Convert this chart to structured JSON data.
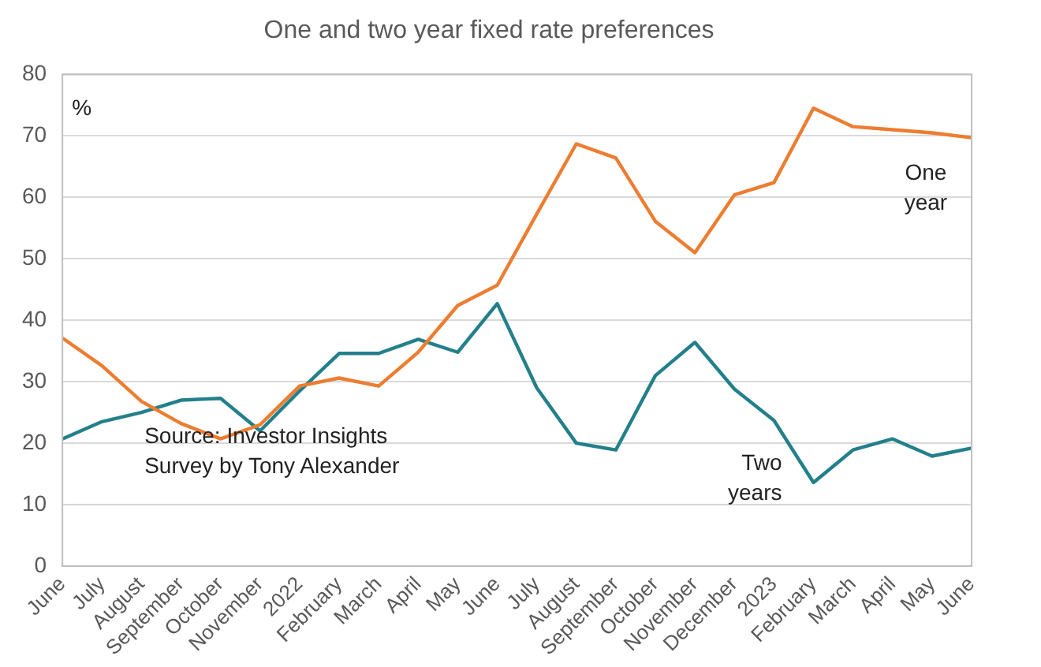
{
  "chart_data": {
    "type": "line",
    "title": "One and two year fixed rate preferences",
    "ylabel": "%",
    "categories": [
      "June",
      "July",
      "August",
      "September",
      "October",
      "November",
      "2022",
      "February",
      "March",
      "April",
      "May",
      "June",
      "July",
      "August",
      "September",
      "October",
      "November",
      "December",
      "2023",
      "February",
      "March",
      "April",
      "May",
      "June"
    ],
    "series": [
      {
        "name": "One year",
        "color": "#ed7d31",
        "values": [
          37.1,
          32.6,
          26.8,
          23.2,
          20.7,
          23,
          29.3,
          30.6,
          29.3,
          34.8,
          42.4,
          45.7,
          57.3,
          68.7,
          66.4,
          56.1,
          51,
          60.4,
          62.4,
          74.5,
          71.5,
          71,
          70.5,
          69.7
        ]
      },
      {
        "name": "Two years",
        "color": "#23808b",
        "values": [
          20.7,
          23.5,
          25,
          27,
          27.3,
          22,
          28.5,
          34.6,
          34.6,
          36.9,
          34.8,
          42.7,
          29,
          20,
          18.9,
          31,
          36.4,
          28.8,
          23.7,
          13.6,
          18.9,
          20.7,
          17.9,
          19.2
        ]
      }
    ],
    "ylim": [
      0,
      80
    ],
    "yticks": [
      0,
      10,
      20,
      30,
      40,
      50,
      60,
      70,
      80
    ],
    "grid": "y",
    "legend": false,
    "marker": "none",
    "line_style": "solid",
    "annotations": [
      "Source: Investor Insights Survey by Tony Alexander"
    ]
  }
}
